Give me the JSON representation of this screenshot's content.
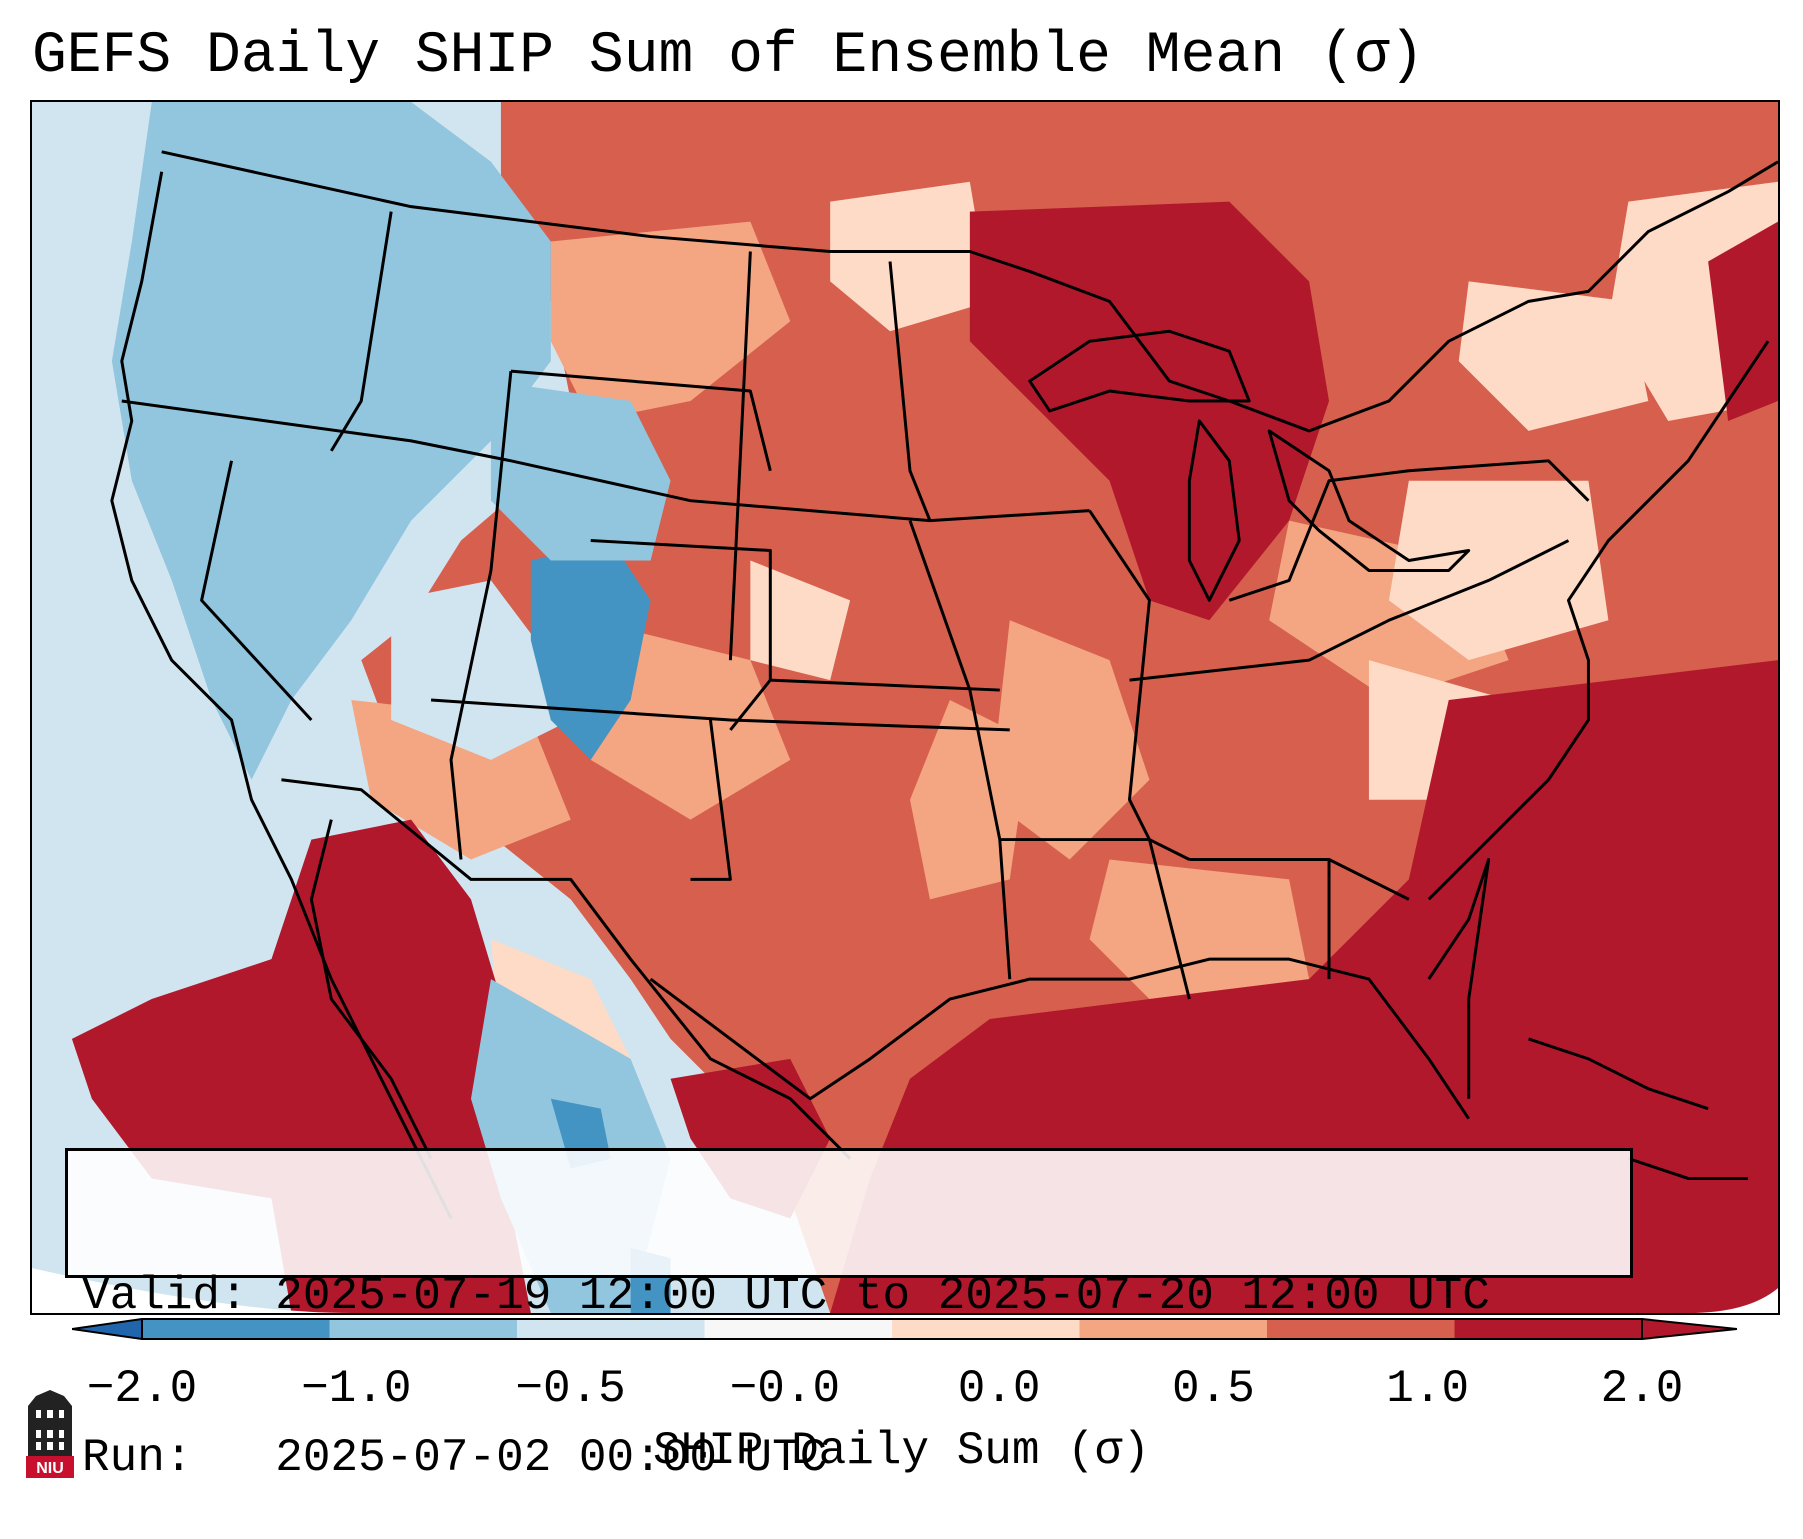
{
  "title": "GEFS Daily SHIP Sum of Ensemble Mean (σ)",
  "info": {
    "valid_label": "Valid:",
    "valid_text": "2025-07-19 12:00 UTC to 2025-07-20 12:00 UTC",
    "run_label": "Run:",
    "run_text": "2025-07-02 00:00 UTC"
  },
  "colorbar": {
    "label": "SHIP Daily Sum (σ)",
    "ticks": [
      "−2.0",
      "−1.0",
      "−0.5",
      "−0.0",
      "0.0",
      "0.5",
      "1.0",
      "2.0"
    ],
    "colors": {
      "below_min": "#2166ac",
      "bins": [
        "#4393c3",
        "#92c5de",
        "#d1e5f0",
        "#f7f7f7",
        "#fddbc7",
        "#f4a582",
        "#d6604d",
        "#b2182b"
      ],
      "above_max": "#b2182b"
    },
    "extend": "both"
  },
  "logo": {
    "text": "NIU",
    "primary_color": "#c8102e"
  },
  "map": {
    "background_color": "#d1e5f0",
    "boundary_color": "#000000"
  }
}
